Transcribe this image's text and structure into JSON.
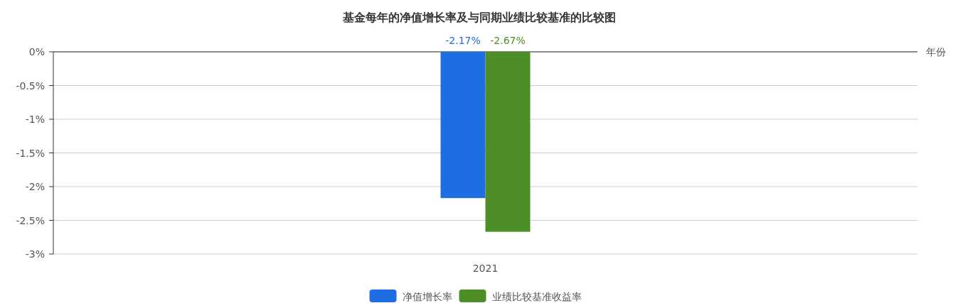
{
  "chart_data": {
    "type": "bar",
    "title": "基金每年的净值增长率及与同期业绩比较基准的比较图",
    "xlabel": "年份",
    "categories": [
      "2021"
    ],
    "series": [
      {
        "name": "净值增长率",
        "color": "#1f6de2",
        "values": [
          -2.17
        ],
        "value_labels": [
          "-2.17%"
        ]
      },
      {
        "name": "业绩比较基准收益率",
        "color": "#4d8f26",
        "values": [
          -2.67
        ],
        "value_labels": [
          "-2.67%"
        ]
      }
    ],
    "ylim": [
      -3,
      0
    ],
    "yticks": [
      {
        "value": 0,
        "label": "0%"
      },
      {
        "value": -0.5,
        "label": "-0.5%"
      },
      {
        "value": -1,
        "label": "-1%"
      },
      {
        "value": -1.5,
        "label": "-1.5%"
      },
      {
        "value": -2,
        "label": "-2%"
      },
      {
        "value": -2.5,
        "label": "-2.5%"
      },
      {
        "value": -3,
        "label": "-3%"
      }
    ],
    "grid": "y",
    "legend": "bottom"
  }
}
